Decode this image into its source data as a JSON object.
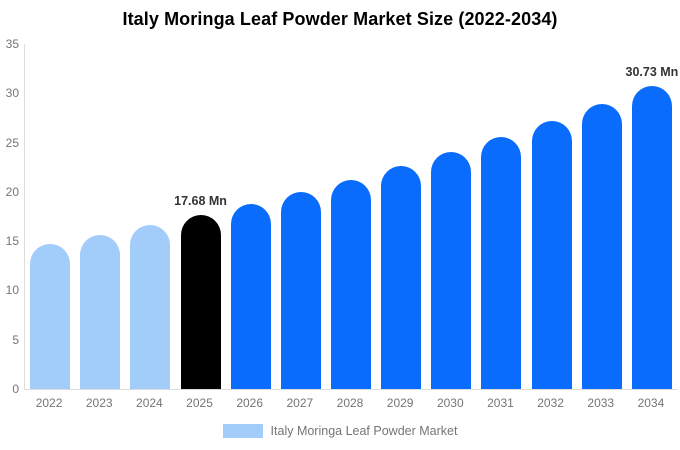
{
  "chart_data": {
    "type": "bar",
    "title": "Italy Moringa Leaf Powder Market Size (2022-2034)",
    "categories": [
      "2022",
      "2023",
      "2024",
      "2025",
      "2026",
      "2027",
      "2028",
      "2029",
      "2030",
      "2031",
      "2032",
      "2033",
      "2034"
    ],
    "values": [
      14.71,
      15.64,
      16.63,
      17.68,
      18.8,
      19.99,
      21.25,
      22.6,
      24.03,
      25.55,
      27.17,
      28.89,
      30.73
    ],
    "bar_styles": [
      "past",
      "past",
      "past",
      "current",
      "forecast",
      "forecast",
      "forecast",
      "forecast",
      "forecast",
      "forecast",
      "forecast",
      "forecast",
      "forecast"
    ],
    "colors": {
      "past": "#A2CCFA",
      "current": "#000000",
      "forecast": "#0A6CFD"
    },
    "annotations": [
      {
        "index": 3,
        "text": "17.68 Mn"
      },
      {
        "index": 12,
        "text": "30.73 Mn"
      }
    ],
    "xlabel": "",
    "ylabel": "",
    "ylim": [
      0,
      35
    ],
    "yticks": [
      0,
      5,
      10,
      15,
      20,
      25,
      30,
      35
    ],
    "grid": false,
    "legend": {
      "position": "bottom",
      "label": "Italy Moringa Leaf Powder Market",
      "swatch_color": "#A2CCFA"
    },
    "axis_line_color": "#dddddd",
    "tick_label_color": "#757575",
    "annotation_color": "#333333",
    "background_color": "#ffffff"
  }
}
